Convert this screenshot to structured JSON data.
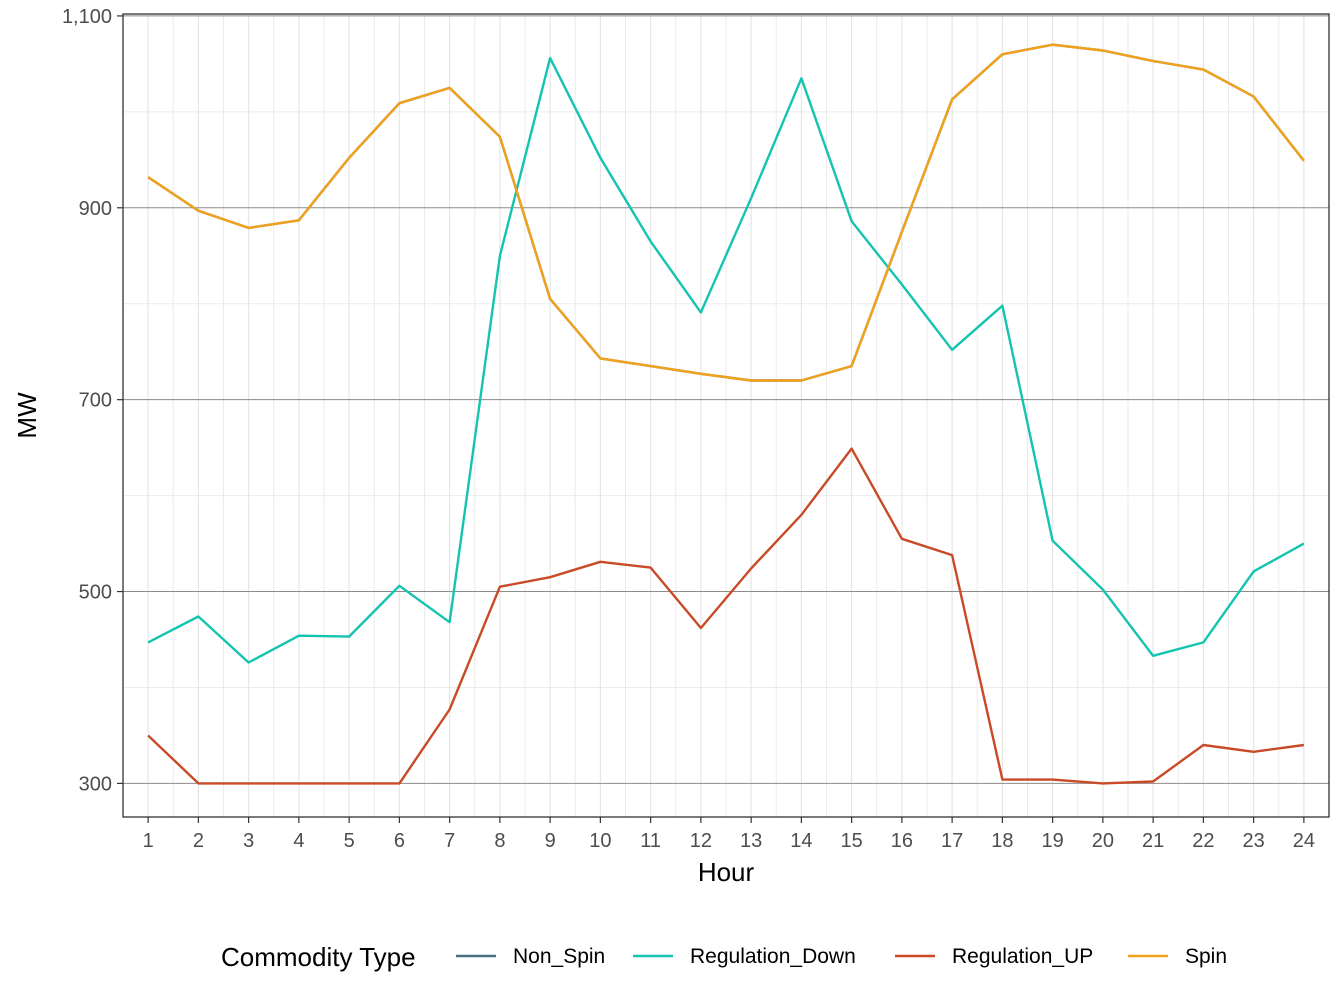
{
  "chart_data": {
    "type": "line",
    "title": "",
    "xlabel": "Hour",
    "ylabel": "MW",
    "x": [
      1,
      2,
      3,
      4,
      5,
      6,
      7,
      8,
      9,
      10,
      11,
      12,
      13,
      14,
      15,
      16,
      17,
      18,
      19,
      20,
      21,
      22,
      23,
      24
    ],
    "x_tick_labels": [
      "1",
      "2",
      "3",
      "4",
      "5",
      "6",
      "7",
      "8",
      "9",
      "10",
      "11",
      "12",
      "13",
      "14",
      "15",
      "16",
      "17",
      "18",
      "19",
      "20",
      "21",
      "22",
      "23",
      "24"
    ],
    "xlim": [
      0.5,
      24.5
    ],
    "ylim": [
      265,
      1102
    ],
    "y_ticks": [
      300,
      500,
      700,
      900,
      1100
    ],
    "y_tick_labels": [
      "300",
      "500",
      "700",
      "900",
      "1,100"
    ],
    "y_minor_ticks": [
      400,
      600,
      800,
      1000
    ],
    "grid": true,
    "legend": {
      "title": "Commodity Type",
      "position": "bottom"
    },
    "series": [
      {
        "name": "Non_Spin",
        "color": "#4a7080",
        "values": [
          932,
          897,
          879,
          887,
          952,
          1009,
          1025,
          974,
          805,
          743,
          735,
          727,
          720,
          720,
          735,
          875,
          1013,
          1060,
          1070,
          1064,
          1053,
          1044,
          1016,
          949
        ]
      },
      {
        "name": "Regulation_Down",
        "color": "#14c4b0",
        "values": [
          447,
          474,
          426,
          454,
          453,
          506,
          468,
          850,
          1056,
          952,
          865,
          791,
          910,
          1035,
          886,
          820,
          752,
          798,
          553,
          502,
          433,
          447,
          521,
          550
        ]
      },
      {
        "name": "Regulation_UP",
        "color": "#c94a26",
        "values": [
          350,
          300,
          300,
          300,
          300,
          300,
          377,
          505,
          515,
          531,
          525,
          462,
          524,
          580,
          649,
          555,
          538,
          304,
          304,
          300,
          302,
          340,
          333,
          340
        ]
      },
      {
        "name": "Spin",
        "color": "#f2a11a",
        "values": [
          932,
          897,
          879,
          887,
          952,
          1009,
          1025,
          974,
          805,
          743,
          735,
          727,
          720,
          720,
          735,
          875,
          1013,
          1060,
          1070,
          1064,
          1053,
          1044,
          1016,
          949
        ]
      }
    ]
  }
}
